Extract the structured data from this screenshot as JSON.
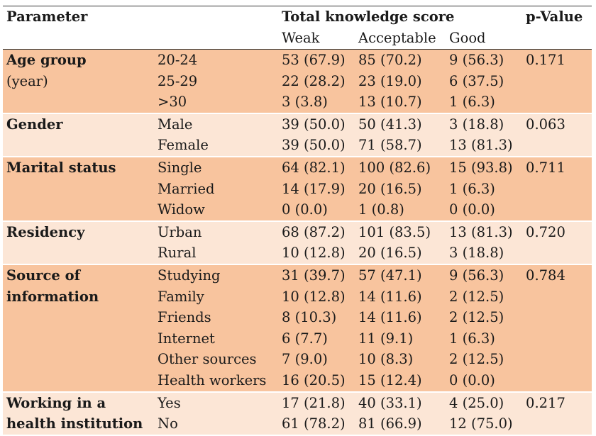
{
  "header": {
    "parameter": "Parameter",
    "total": "Total knowledge score",
    "pvalue": "p-Value",
    "weak": "Weak",
    "acceptable": "Acceptable",
    "good": "Good"
  },
  "groups": [
    {
      "name_lines": [
        "Age group",
        "(year)"
      ],
      "bold_lines": [
        true,
        false
      ],
      "p": "0.171",
      "rows": [
        {
          "cat": "20-24",
          "weak": "53 (67.9)",
          "acc": "85 (70.2)",
          "good": "9 (56.3)"
        },
        {
          "cat": "25-29",
          "weak": "22 (28.2)",
          "acc": "23 (19.0)",
          "good": "6 (37.5)"
        },
        {
          "cat": ">30",
          "weak": "3 (3.8)",
          "acc": "13 (10.7)",
          "good": "1 (6.3)"
        }
      ]
    },
    {
      "name_lines": [
        "Gender"
      ],
      "bold_lines": [
        true
      ],
      "p": "0.063",
      "rows": [
        {
          "cat": "Male",
          "weak": "39 (50.0)",
          "acc": "50 (41.3)",
          "good": "3 (18.8)"
        },
        {
          "cat": "Female",
          "weak": "39 (50.0)",
          "acc": "71 (58.7)",
          "good": "13 (81.3)"
        }
      ]
    },
    {
      "name_lines": [
        "Marital status"
      ],
      "bold_lines": [
        true
      ],
      "p": "0.711",
      "rows": [
        {
          "cat": "Single",
          "weak": "64 (82.1)",
          "acc": "100 (82.6)",
          "good": "15 (93.8)"
        },
        {
          "cat": "Married",
          "weak": "14 (17.9)",
          "acc": "20 (16.5)",
          "good": "1 (6.3)"
        },
        {
          "cat": "Widow",
          "weak": "0 (0.0)",
          "acc": "1 (0.8)",
          "good": "0 (0.0)"
        }
      ]
    },
    {
      "name_lines": [
        "Residency"
      ],
      "bold_lines": [
        true
      ],
      "p": "0.720",
      "rows": [
        {
          "cat": "Urban",
          "weak": "68 (87.2)",
          "acc": "101 (83.5)",
          "good": "13 (81.3)"
        },
        {
          "cat": "Rural",
          "weak": "10 (12.8)",
          "acc": "20 (16.5)",
          "good": "3 (18.8)"
        }
      ]
    },
    {
      "name_lines": [
        "Source of",
        "information"
      ],
      "bold_lines": [
        true,
        true
      ],
      "p": "0.784",
      "rows": [
        {
          "cat": "Studying",
          "weak": "31 (39.7)",
          "acc": "57 (47.1)",
          "good": "9 (56.3)"
        },
        {
          "cat": "Family",
          "weak": "10 (12.8)",
          "acc": "14 (11.6)",
          "good": "2 (12.5)"
        },
        {
          "cat": "Friends",
          "weak": "8 (10.3)",
          "acc": "14 (11.6)",
          "good": "2 (12.5)"
        },
        {
          "cat": "Internet",
          "weak": "6 (7.7)",
          "acc": "11 (9.1)",
          "good": "1 (6.3)"
        },
        {
          "cat": "Other sources",
          "weak": "7 (9.0)",
          "acc": "10 (8.3)",
          "good": "2 (12.5)"
        },
        {
          "cat": "Health workers",
          "weak": "16 (20.5)",
          "acc": "15 (12.4)",
          "good": "0 (0.0)"
        }
      ]
    },
    {
      "name_lines": [
        "Working in a",
        "health institution"
      ],
      "bold_lines": [
        true,
        true
      ],
      "p": "0.217",
      "rows": [
        {
          "cat": "Yes",
          "weak": "17 (21.8)",
          "acc": "40 (33.1)",
          "good": "4 (25.0)"
        },
        {
          "cat": "No",
          "weak": "61 (78.2)",
          "acc": "81 (66.9)",
          "good": "12 (75.0)"
        }
      ]
    }
  ]
}
